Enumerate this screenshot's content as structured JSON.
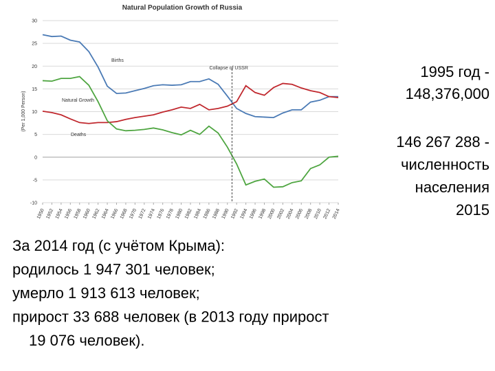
{
  "chart_data": {
    "type": "line",
    "title": "Natural Population Growth of Russia",
    "y_label": "(Per 1,000 Person)",
    "x": [
      1950,
      1952,
      1954,
      1956,
      1958,
      1960,
      1962,
      1964,
      1966,
      1968,
      1970,
      1972,
      1974,
      1976,
      1978,
      1980,
      1982,
      1984,
      1986,
      1988,
      1990,
      1992,
      1994,
      1996,
      1998,
      2000,
      2002,
      2004,
      2006,
      2008,
      2010,
      2012,
      2014
    ],
    "xlim": [
      1950,
      2014
    ],
    "xticks": [
      1950,
      1952,
      1954,
      1956,
      1958,
      1960,
      1962,
      1964,
      1966,
      1968,
      1970,
      1972,
      1974,
      1976,
      1978,
      1980,
      1982,
      1984,
      1986,
      1988,
      1990,
      1992,
      1994,
      1996,
      1998,
      2000,
      2002,
      2004,
      2006,
      2008,
      2010,
      2012,
      2014
    ],
    "ylim": [
      -10,
      30
    ],
    "yticks": [
      -10,
      -5,
      0,
      5,
      10,
      15,
      20,
      25,
      30
    ],
    "grid": true,
    "series": [
      {
        "name": "Births",
        "color": "#4a7ab5",
        "values": [
          26.9,
          26.5,
          26.6,
          25.7,
          25.3,
          23.2,
          19.8,
          15.6,
          14.0,
          14.1,
          14.6,
          15.1,
          15.7,
          15.9,
          15.8,
          15.9,
          16.6,
          16.6,
          17.2,
          16.0,
          13.4,
          10.7,
          9.6,
          8.9,
          8.8,
          8.7,
          9.7,
          10.4,
          10.4,
          12.1,
          12.5,
          13.3,
          13.3
        ]
      },
      {
        "name": "Deaths",
        "color": "#c0272d",
        "values": [
          10.1,
          9.8,
          9.3,
          8.4,
          7.6,
          7.4,
          7.6,
          7.6,
          7.8,
          8.3,
          8.7,
          9.0,
          9.3,
          9.9,
          10.4,
          11.0,
          10.7,
          11.6,
          10.4,
          10.7,
          11.2,
          12.2,
          15.7,
          14.2,
          13.6,
          15.3,
          16.2,
          16.0,
          15.2,
          14.6,
          14.2,
          13.3,
          13.1
        ]
      },
      {
        "name": "Natural Growth",
        "color": "#4ea540",
        "values": [
          16.8,
          16.7,
          17.3,
          17.3,
          17.7,
          15.8,
          12.2,
          8.0,
          6.2,
          5.8,
          5.9,
          6.1,
          6.4,
          6.0,
          5.4,
          4.9,
          5.9,
          5.0,
          6.8,
          5.3,
          2.2,
          -1.5,
          -6.1,
          -5.3,
          -4.8,
          -6.6,
          -6.5,
          -5.6,
          -5.2,
          -2.5,
          -1.7,
          0.0,
          0.2
        ]
      }
    ],
    "annotations": [
      {
        "text": "Collapse of USSR",
        "x": 1991
      }
    ]
  },
  "slide_text": {
    "note_1995": [
      "1995 год -",
      "148,376,000"
    ],
    "note_2015": [
      "146 267 288 -",
      "численность",
      "населения",
      "2015"
    ],
    "summary": [
      "За 2014 год (с учётом Крыма):",
      "родилось 1 947 301 человек;",
      "умерло 1 913 613 человек;",
      "прирост 33 688 человек (в 2013 году прирост",
      "19 076 человек)."
    ]
  }
}
